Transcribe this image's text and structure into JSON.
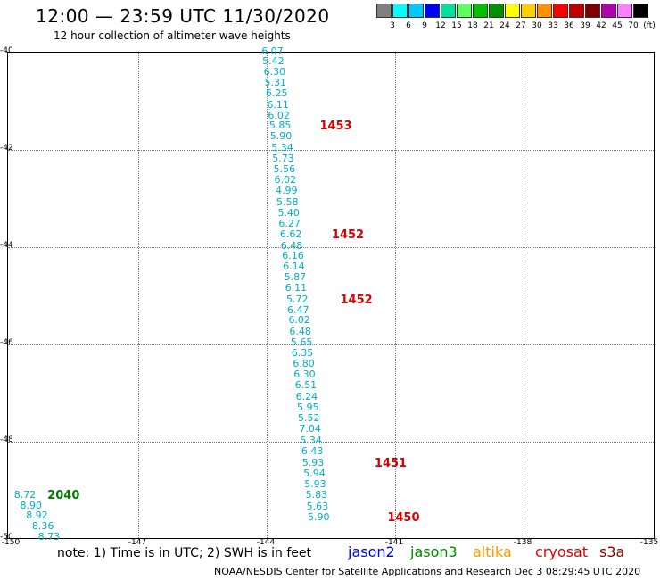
{
  "title": "12:00 — 23:59 UTC 11/30/2020",
  "subtitle": "12 hour collection of altimeter wave heights",
  "color_scale": {
    "labels": [
      "3",
      "6",
      "9",
      "12",
      "15",
      "18",
      "21",
      "24",
      "27",
      "30",
      "33",
      "36",
      "39",
      "42",
      "45",
      "70",
      "(ft)"
    ],
    "colors": [
      "#808080",
      "#00ffff",
      "#00c8ff",
      "#0000ff",
      "#00e0a0",
      "#60ff60",
      "#00c000",
      "#009000",
      "#ffff00",
      "#ffd000",
      "#ff9000",
      "#ff0000",
      "#c00000",
      "#800000",
      "#b000b0",
      "#ff80ff",
      "#000000"
    ]
  },
  "map": {
    "lat_labels": [
      "-40",
      "-42",
      "-44",
      "-46",
      "-48",
      "-50"
    ],
    "lon_labels": [
      "-150",
      "-147",
      "-144",
      "-141",
      "-138",
      "-135"
    ],
    "lat_range": [
      -50,
      -40
    ],
    "lon_range": [
      -150,
      -135
    ]
  },
  "track_values": [
    {
      "v": "6.07",
      "lon": -144.1,
      "lat": -40.0
    },
    {
      "v": "5.42",
      "lon": -144.08,
      "lat": -40.2
    },
    {
      "v": "6.30",
      "lon": -144.05,
      "lat": -40.43
    },
    {
      "v": "5.31",
      "lon": -144.03,
      "lat": -40.65
    },
    {
      "v": "6.25",
      "lon": -144.0,
      "lat": -40.87
    },
    {
      "v": "6.11",
      "lon": -143.97,
      "lat": -41.1
    },
    {
      "v": "6.02",
      "lon": -143.95,
      "lat": -41.32
    },
    {
      "v": "5.85",
      "lon": -143.92,
      "lat": -41.53
    },
    {
      "v": "5.90",
      "lon": -143.9,
      "lat": -41.75
    },
    {
      "v": "5.34",
      "lon": -143.87,
      "lat": -41.98
    },
    {
      "v": "5.73",
      "lon": -143.85,
      "lat": -42.2
    },
    {
      "v": "5.56",
      "lon": -143.82,
      "lat": -42.42
    },
    {
      "v": "6.02",
      "lon": -143.8,
      "lat": -42.65
    },
    {
      "v": "4.99",
      "lon": -143.77,
      "lat": -42.87
    },
    {
      "v": "5.58",
      "lon": -143.75,
      "lat": -43.1
    },
    {
      "v": "5.40",
      "lon": -143.72,
      "lat": -43.32
    },
    {
      "v": "6.27",
      "lon": -143.7,
      "lat": -43.55
    },
    {
      "v": "6.62",
      "lon": -143.67,
      "lat": -43.77
    },
    {
      "v": "6.48",
      "lon": -143.65,
      "lat": -44.0
    },
    {
      "v": "6.16",
      "lon": -143.62,
      "lat": -44.2
    },
    {
      "v": "6.14",
      "lon": -143.6,
      "lat": -44.43
    },
    {
      "v": "5.87",
      "lon": -143.57,
      "lat": -44.65
    },
    {
      "v": "6.11",
      "lon": -143.55,
      "lat": -44.87
    },
    {
      "v": "5.72",
      "lon": -143.52,
      "lat": -45.1
    },
    {
      "v": "6.47",
      "lon": -143.5,
      "lat": -45.32
    },
    {
      "v": "6.02",
      "lon": -143.47,
      "lat": -45.53
    },
    {
      "v": "6.48",
      "lon": -143.45,
      "lat": -45.76
    },
    {
      "v": "5.65",
      "lon": -143.42,
      "lat": -45.98
    },
    {
      "v": "6.35",
      "lon": -143.4,
      "lat": -46.2
    },
    {
      "v": "6.80",
      "lon": -143.37,
      "lat": -46.42
    },
    {
      "v": "6.30",
      "lon": -143.35,
      "lat": -46.65
    },
    {
      "v": "6.51",
      "lon": -143.32,
      "lat": -46.87
    },
    {
      "v": "6.24",
      "lon": -143.3,
      "lat": -47.1
    },
    {
      "v": "5.95",
      "lon": -143.27,
      "lat": -47.32
    },
    {
      "v": "5.52",
      "lon": -143.25,
      "lat": -47.55
    },
    {
      "v": "7.04",
      "lon": -143.22,
      "lat": -47.77
    },
    {
      "v": "5.34",
      "lon": -143.2,
      "lat": -48.0
    },
    {
      "v": "6.43",
      "lon": -143.17,
      "lat": -48.22
    },
    {
      "v": "5.93",
      "lon": -143.15,
      "lat": -48.45
    },
    {
      "v": "5.94",
      "lon": -143.12,
      "lat": -48.67
    },
    {
      "v": "5.93",
      "lon": -143.1,
      "lat": -48.9
    },
    {
      "v": "5.83",
      "lon": -143.07,
      "lat": -49.12
    },
    {
      "v": "5.63",
      "lon": -143.05,
      "lat": -49.35
    },
    {
      "v": "5.90",
      "lon": -143.02,
      "lat": -49.57
    }
  ],
  "sw_values": [
    {
      "v": "8.72",
      "lon": -149.88,
      "lat": -49.12
    },
    {
      "v": "8.90",
      "lon": -149.74,
      "lat": -49.34
    },
    {
      "v": "8.92",
      "lon": -149.6,
      "lat": -49.55
    },
    {
      "v": "8.36",
      "lon": -149.46,
      "lat": -49.77
    },
    {
      "v": "8.73",
      "lon": -149.32,
      "lat": -49.98
    }
  ],
  "times": [
    {
      "t": "1453",
      "lon": -142.74,
      "lat": -41.53,
      "cls": "tm-red"
    },
    {
      "t": "1452",
      "lon": -142.46,
      "lat": -43.77,
      "cls": "tm-red"
    },
    {
      "t": "1452",
      "lon": -142.26,
      "lat": -45.1,
      "cls": "tm-red"
    },
    {
      "t": "1451",
      "lon": -141.46,
      "lat": -48.45,
      "cls": "tm-red"
    },
    {
      "t": "1450",
      "lon": -141.16,
      "lat": -49.57,
      "cls": "tm-red"
    },
    {
      "t": "2040",
      "lon": -149.1,
      "lat": -49.12,
      "cls": "tm-green"
    }
  ],
  "note": "note: 1) Time is in UTC; 2) SWH is in feet",
  "satellites": [
    {
      "name": "jason2",
      "color": "#0000ff"
    },
    {
      "name": "jason3",
      "color": "#008c00"
    },
    {
      "name": "altika",
      "color": "#ff9900"
    },
    {
      "name": "cryosat",
      "color": "#e00000"
    },
    {
      "name": "s3a",
      "color": "#8b0000"
    }
  ],
  "footer": "NOAA/NESDIS Center for Satellite Applications and Research    Dec  3 08:29:45 UTC 2020"
}
